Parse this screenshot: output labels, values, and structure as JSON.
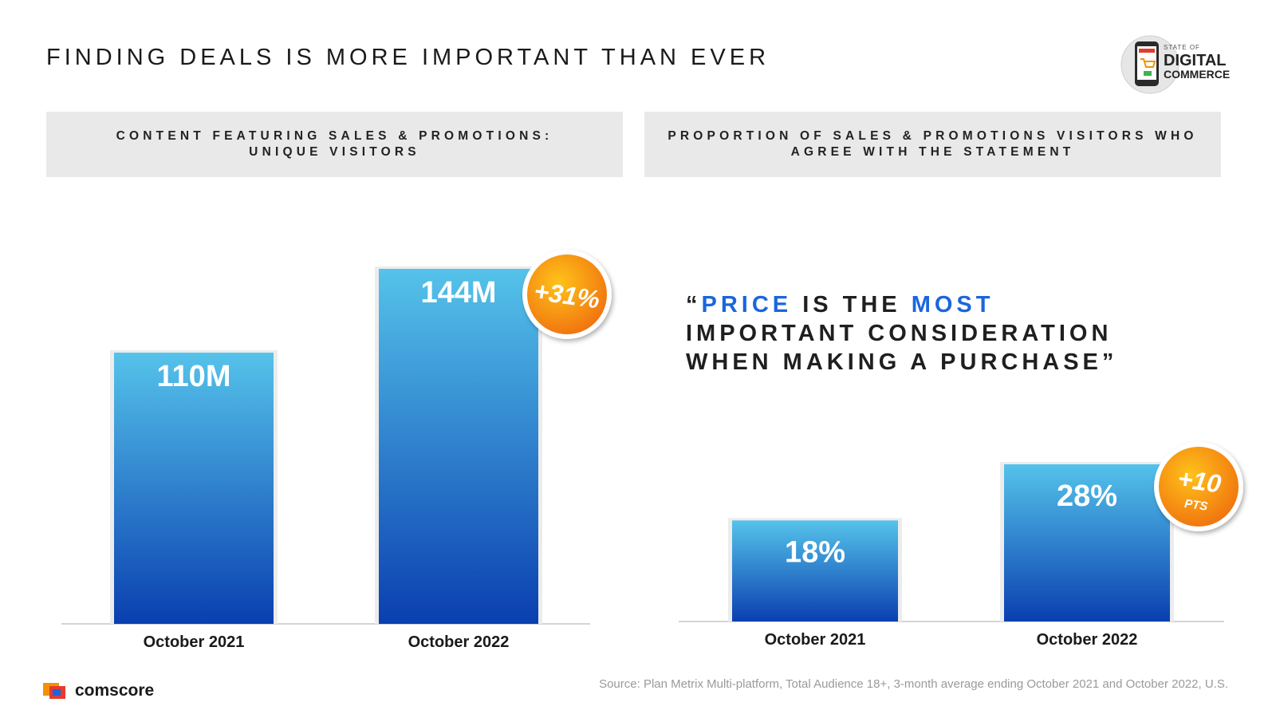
{
  "slide": {
    "title": "FINDING DEALS IS MORE IMPORTANT THAN EVER",
    "logo_small": "STATE OF",
    "logo_big_1": "DIGITAL",
    "logo_big_2": "COMMERCE",
    "left_header_line1": "CONTENT FEATURING SALES & PROMOTIONS:",
    "left_header_line2": "UNIQUE VISITORS",
    "right_header_line1": "PROPORTION OF SALES & PROMOTIONS VISITORS WHO",
    "right_header_line2": "AGREE WITH THE STATEMENT",
    "quote": {
      "open": "“",
      "w1": "PRICE",
      "w2": " IS THE ",
      "w3": "MOST",
      "line2": "IMPORTANT CONSIDERATION",
      "line3": "WHEN MAKING A PURCHASE”"
    },
    "source": "Source: Plan Metrix Multi-platform, Total Audience 18+, 3-month average ending October 2021 and October 2022, U.S.",
    "brand": "comscore"
  },
  "colors": {
    "bar_top": "#55c3ea",
    "bar_bottom": "#0a3fb0",
    "badge_light": "#ffc21a",
    "badge_dark": "#f0720f",
    "highlight": "#1a66dc"
  },
  "chart_data": [
    {
      "type": "bar",
      "title": "CONTENT FEATURING SALES & PROMOTIONS: UNIQUE VISITORS",
      "categories": [
        "October 2021",
        "October 2022"
      ],
      "values": [
        110,
        144
      ],
      "labels": [
        "110M",
        "144M"
      ],
      "units": "M",
      "ylim": [
        0,
        144
      ],
      "change_badge": {
        "main": "+31%",
        "sub": ""
      }
    },
    {
      "type": "bar",
      "title": "PROPORTION OF SALES & PROMOTIONS VISITORS WHO AGREE WITH THE STATEMENT",
      "categories": [
        "October 2021",
        "October 2022"
      ],
      "values": [
        18,
        28
      ],
      "labels": [
        "18%",
        "28%"
      ],
      "units": "%",
      "ylim": [
        0,
        28
      ],
      "change_badge": {
        "main": "+10",
        "sub": "PTS"
      }
    }
  ]
}
